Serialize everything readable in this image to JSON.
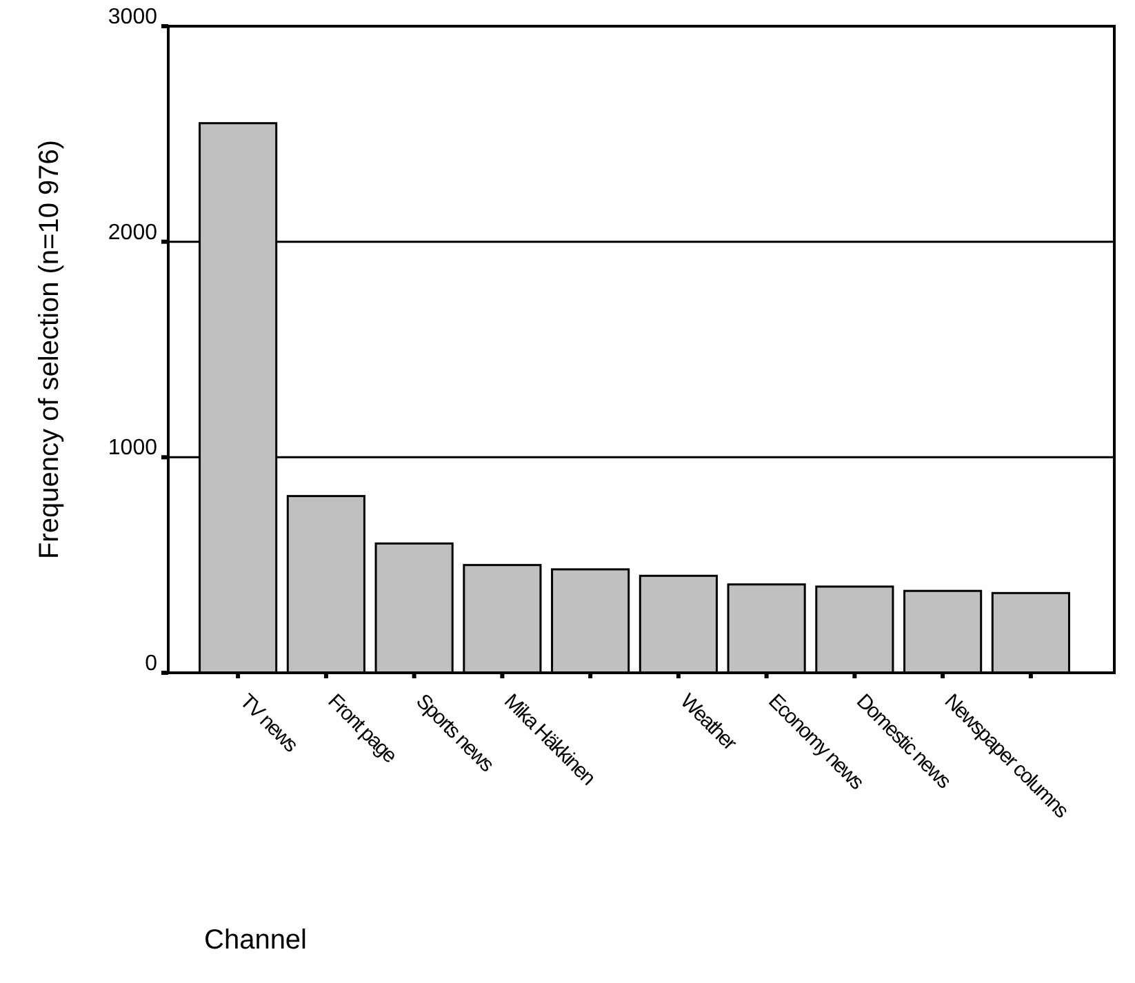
{
  "chart_data": {
    "type": "bar",
    "xlabel": "Channel",
    "ylabel": "Frequency of selection (n=10 976)",
    "categories": [
      "TV news",
      "Front page",
      "Sports news",
      "Mika Häkkinen",
      null,
      "Weather",
      "Economy news",
      "Domestic news",
      "Newspaper columns",
      null
    ],
    "values": [
      2550,
      820,
      600,
      500,
      480,
      450,
      410,
      400,
      380,
      370
    ],
    "color": "#c0c0c0",
    "ylim": [
      0,
      3000
    ],
    "yticks": [
      0,
      1000,
      2000,
      3000
    ],
    "grid": "y"
  }
}
